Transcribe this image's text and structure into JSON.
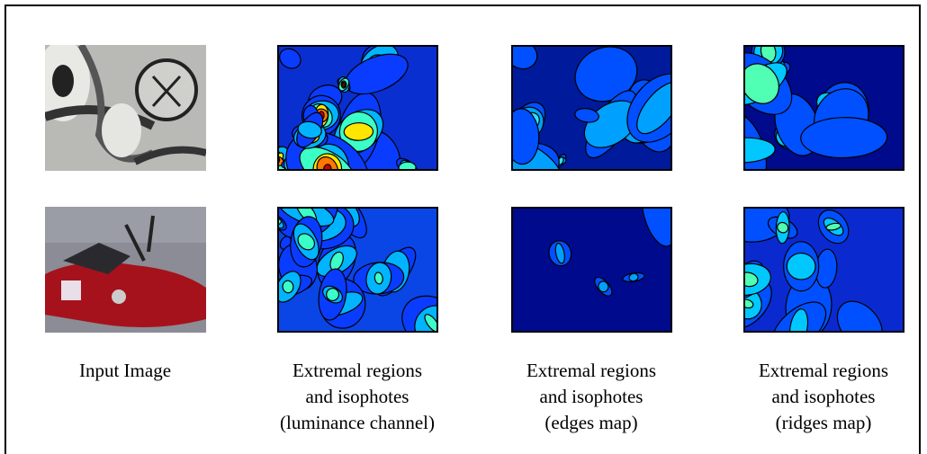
{
  "captions": [
    {
      "lines": [
        "Input Image"
      ]
    },
    {
      "lines": [
        "Extremal regions",
        "and isophotes",
        "(luminance channel)"
      ]
    },
    {
      "lines": [
        "Extremal regions",
        "and isophotes",
        "(edges map)"
      ]
    },
    {
      "lines": [
        "Extremal regions",
        "and isophotes",
        "(ridges map)"
      ]
    }
  ]
}
